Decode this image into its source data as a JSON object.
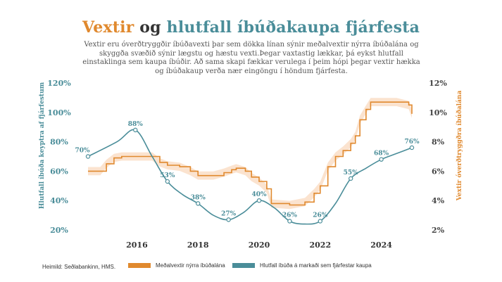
{
  "title": {
    "part1": "Vextir",
    "part2": " og ",
    "part3": "hlutfall íbúðakaupa fjárfesta"
  },
  "subtitle": "Vextir eru óverðtryggðir íbúðavexti þar sem dökka línan sýnir meðalvextir nýrra íbúðalána og skyggða svæðið sýnir lægstu og hæstu vexti.Þegar vaxtastig lækkar, þá eykst hlutfall einstaklinga sem kaupa íbúðir. Að sama skapi fækkar verulega í þeim hópi þegar vextir hækka og íbúðakaup verða nær eingöngu í höndum fjárfesta.",
  "footer": {
    "source": "Heimild: Seðlabankinn, HMS."
  },
  "legend": [
    {
      "label": "Meðalvextir nýrra íbúðalána",
      "color": "#e0892e"
    },
    {
      "label": "Hlutfall íbúða á markaði sem fjárfestar kaupa",
      "color": "#4a8d99"
    }
  ],
  "colors": {
    "investor": "#4a8d99",
    "rate": "#e0892e",
    "band": "#fbe3cf"
  },
  "chart_data": {
    "type": "line",
    "title": "Vextir og hlutfall íbúðakaupa fjárfesta",
    "left_ylabel": "Hlutfall íbúða keyptra af fjárfestum",
    "right_ylabel": "Vextir óverðtryggðra íbúðalána",
    "left_ylim": [
      20,
      120
    ],
    "left_ticks": [
      "20%",
      "40%",
      "60%",
      "80%",
      "100%",
      "120%"
    ],
    "right_ylim": [
      2,
      12
    ],
    "right_ticks": [
      "2%",
      "4%",
      "6%",
      "8%",
      "10%",
      "12%"
    ],
    "xlim": [
      2014.1,
      2025.3
    ],
    "x_ticks": [
      "2016",
      "2018",
      "2020",
      "2022",
      "2024"
    ],
    "grid": false,
    "series": [
      {
        "name": "Hlutfall íbúða á markaði sem fjárfestar kaupa",
        "axis": "left",
        "x": [
          2014.4,
          2015.35,
          2015.95,
          2016.5,
          2017.0,
          2017.5,
          2018.0,
          2018.5,
          2019.0,
          2019.5,
          2020.0,
          2020.5,
          2021.0,
          2021.5,
          2022.0,
          2022.5,
          2023.0,
          2023.5,
          2024.0,
          2024.5,
          2025.0
        ],
        "values": [
          70,
          80,
          88,
          70,
          53,
          44,
          38,
          30,
          27,
          32,
          40,
          35,
          26,
          24,
          26,
          38,
          55,
          62,
          68,
          72,
          76
        ],
        "labels": [
          {
            "x": 2014.4,
            "text": "70%"
          },
          {
            "x": 2015.95,
            "text": "88%"
          },
          {
            "x": 2017.0,
            "text": "53%"
          },
          {
            "x": 2018.0,
            "text": "38%"
          },
          {
            "x": 2019.0,
            "text": "27%"
          },
          {
            "x": 2020.0,
            "text": "40%"
          },
          {
            "x": 2021.0,
            "text": "26%"
          },
          {
            "x": 2022.0,
            "text": "26%"
          },
          {
            "x": 2023.0,
            "text": "55%"
          },
          {
            "x": 2024.0,
            "text": "68%"
          },
          {
            "x": 2025.0,
            "text": "76%"
          }
        ]
      },
      {
        "name": "Meðalvextir nýrra íbúðalána",
        "axis": "right",
        "x": [
          2014.4,
          2014.8,
          2015.0,
          2015.25,
          2015.5,
          2016.0,
          2016.5,
          2016.75,
          2017.0,
          2017.4,
          2017.75,
          2018.0,
          2018.5,
          2018.85,
          2019.1,
          2019.25,
          2019.55,
          2019.75,
          2020.0,
          2020.25,
          2020.4,
          2021.0,
          2021.5,
          2021.8,
          2022.0,
          2022.25,
          2022.5,
          2022.75,
          2023.0,
          2023.15,
          2023.3,
          2023.5,
          2023.65,
          2023.8,
          2024.0,
          2024.5,
          2024.9,
          2025.0
        ],
        "values": [
          6.0,
          6.0,
          6.5,
          6.9,
          7.0,
          7.0,
          7.0,
          6.6,
          6.4,
          6.3,
          6.0,
          5.7,
          5.7,
          5.9,
          6.1,
          6.2,
          6.0,
          5.6,
          5.3,
          4.8,
          3.8,
          3.7,
          3.9,
          4.5,
          5.0,
          6.3,
          7.0,
          7.4,
          7.9,
          8.4,
          9.5,
          10.2,
          10.7,
          10.7,
          10.7,
          10.7,
          10.5,
          9.9
        ]
      }
    ]
  }
}
